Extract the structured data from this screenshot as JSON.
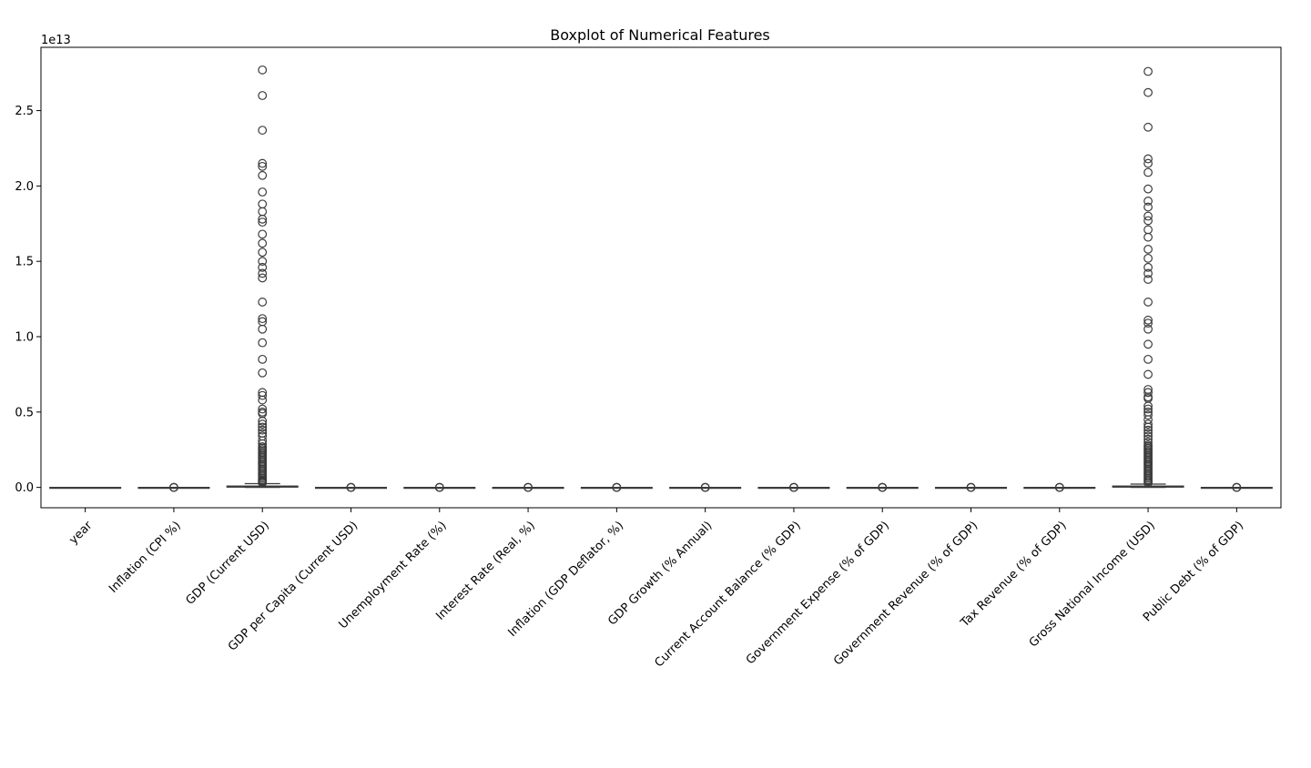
{
  "chart_data": {
    "type": "box",
    "title": "Boxplot of Numerical Features",
    "xlabel": "",
    "ylabel": "",
    "offset_label": "1e13",
    "ylim": [
      -0.135,
      2.92
    ],
    "yticks": [
      0.0,
      0.5,
      1.0,
      1.5,
      2.0,
      2.5
    ],
    "ytick_labels": [
      "0.0",
      "0.5",
      "1.0",
      "1.5",
      "2.0",
      "2.5"
    ],
    "grid": false,
    "box_color": "#3b3b3b",
    "categories": [
      "year",
      "Inflation (CPI %)",
      "GDP (Current USD)",
      "GDP per Capita (Current USD)",
      "Unemployment Rate (%)",
      "Interest Rate (Real, %)",
      "Inflation (GDP Deflator, %)",
      "GDP Growth (% Annual)",
      "Current Account Balance (% GDP)",
      "Government Expense (% of GDP)",
      "Government Revenue (% of GDP)",
      "Tax Revenue (% of GDP)",
      "Gross National Income (USD)",
      "Public Debt (% of GDP)"
    ],
    "series": [
      {
        "q1": 0,
        "median": 0,
        "q3": 0,
        "whisker_low": 0,
        "whisker_high": 0,
        "outliers": []
      },
      {
        "q1": 0,
        "median": 0,
        "q3": 0,
        "whisker_low": 0,
        "whisker_high": 0,
        "outliers": [
          0,
          0,
          0
        ]
      },
      {
        "q1": 0.002,
        "median": 0.004,
        "q3": 0.009,
        "whisker_low": 0,
        "whisker_high": 0.025,
        "outliers": [
          2.77,
          2.6,
          2.37,
          2.15,
          2.13,
          2.07,
          1.96,
          1.88,
          1.83,
          1.78,
          1.76,
          1.68,
          1.62,
          1.56,
          1.5,
          1.46,
          1.42,
          1.39,
          1.23,
          1.12,
          1.1,
          1.05,
          0.96,
          0.85,
          0.76,
          0.63,
          0.61,
          0.58,
          0.52,
          0.5,
          0.49,
          0.44,
          0.42,
          0.4,
          0.38,
          0.36,
          0.34,
          0.31,
          0.29,
          0.27,
          0.26,
          0.25,
          0.24,
          0.23,
          0.22,
          0.21,
          0.2,
          0.19,
          0.18,
          0.17,
          0.16,
          0.15,
          0.14,
          0.13,
          0.12,
          0.11,
          0.1,
          0.09,
          0.08,
          0.07,
          0.06,
          0.05,
          0.045,
          0.04,
          0.035,
          0.03
        ]
      },
      {
        "q1": 0,
        "median": 0,
        "q3": 0,
        "whisker_low": 0,
        "whisker_high": 0,
        "outliers": [
          0,
          0,
          0
        ]
      },
      {
        "q1": 0,
        "median": 0,
        "q3": 0,
        "whisker_low": 0,
        "whisker_high": 0,
        "outliers": [
          0,
          0,
          0
        ]
      },
      {
        "q1": 0,
        "median": 0,
        "q3": 0,
        "whisker_low": 0,
        "whisker_high": 0,
        "outliers": [
          0,
          0,
          0
        ]
      },
      {
        "q1": 0,
        "median": 0,
        "q3": 0,
        "whisker_low": 0,
        "whisker_high": 0,
        "outliers": [
          0,
          0,
          0
        ]
      },
      {
        "q1": 0,
        "median": 0,
        "q3": 0,
        "whisker_low": 0,
        "whisker_high": 0,
        "outliers": [
          0,
          0,
          0
        ]
      },
      {
        "q1": 0,
        "median": 0,
        "q3": 0,
        "whisker_low": 0,
        "whisker_high": 0,
        "outliers": [
          0,
          0,
          0
        ]
      },
      {
        "q1": 0,
        "median": 0,
        "q3": 0,
        "whisker_low": 0,
        "whisker_high": 0,
        "outliers": [
          0,
          0,
          0
        ]
      },
      {
        "q1": 0,
        "median": 0,
        "q3": 0,
        "whisker_low": 0,
        "whisker_high": 0,
        "outliers": [
          0,
          0,
          0
        ]
      },
      {
        "q1": 0,
        "median": 0,
        "q3": 0,
        "whisker_low": 0,
        "whisker_high": 0,
        "outliers": [
          0,
          0,
          0
        ]
      },
      {
        "q1": 0.002,
        "median": 0.004,
        "q3": 0.009,
        "whisker_low": 0,
        "whisker_high": 0.022,
        "outliers": [
          2.76,
          2.62,
          2.39,
          2.18,
          2.15,
          2.09,
          1.98,
          1.9,
          1.86,
          1.8,
          1.77,
          1.71,
          1.66,
          1.58,
          1.52,
          1.46,
          1.42,
          1.38,
          1.23,
          1.11,
          1.09,
          1.05,
          0.95,
          0.85,
          0.75,
          0.65,
          0.63,
          0.6,
          0.59,
          0.54,
          0.52,
          0.5,
          0.48,
          0.45,
          0.42,
          0.4,
          0.38,
          0.36,
          0.34,
          0.32,
          0.3,
          0.28,
          0.27,
          0.26,
          0.25,
          0.24,
          0.23,
          0.22,
          0.21,
          0.2,
          0.19,
          0.18,
          0.17,
          0.16,
          0.15,
          0.14,
          0.13,
          0.12,
          0.11,
          0.1,
          0.09,
          0.08,
          0.07,
          0.06,
          0.05,
          0.04,
          0.03
        ]
      },
      {
        "q1": 0,
        "median": 0,
        "q3": 0,
        "whisker_low": 0,
        "whisker_high": 0,
        "outliers": [
          0,
          0,
          0
        ]
      }
    ]
  }
}
